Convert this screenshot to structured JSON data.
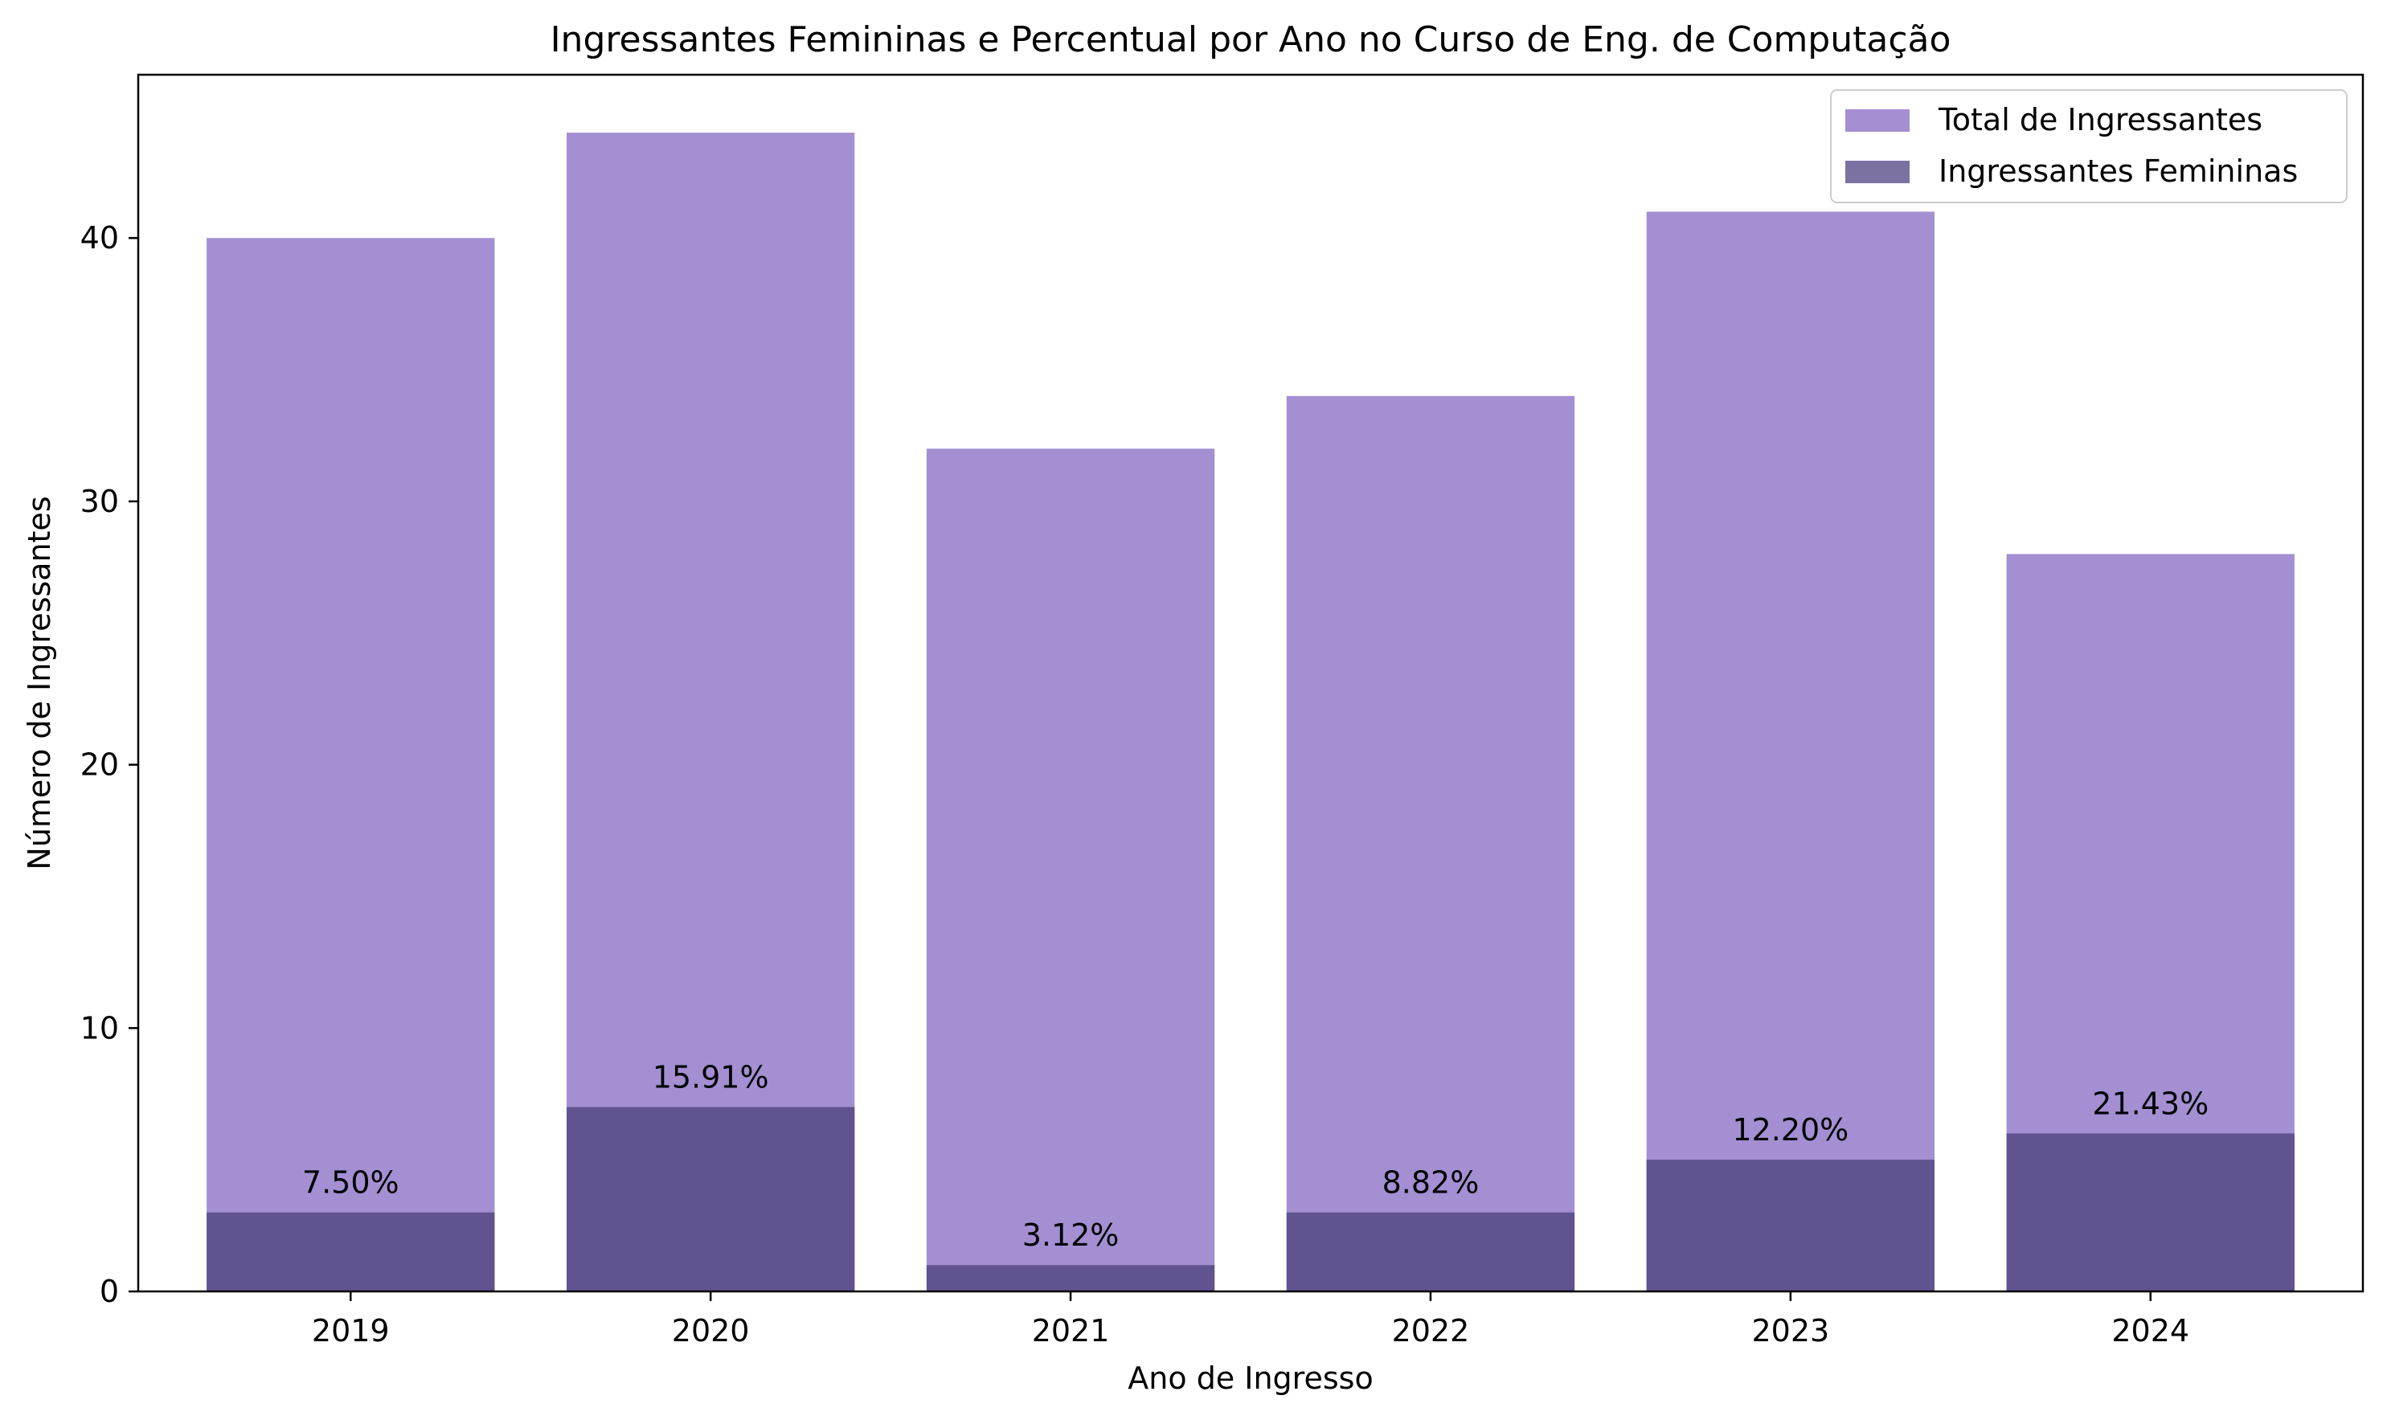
{
  "chart_data": {
    "type": "bar",
    "title": "Ingressantes Femininas e Percentual por Ano no Curso de Eng. de Computação",
    "xlabel": "Ano de Ingresso",
    "ylabel": "Número de Ingressantes",
    "categories": [
      "2019",
      "2020",
      "2021",
      "2022",
      "2023",
      "2024"
    ],
    "ylim": [
      0,
      46.2
    ],
    "yticks": [
      0,
      10,
      20,
      30,
      40
    ],
    "grid": false,
    "legend_position": "top-right",
    "series": [
      {
        "name": "Total de Ingressantes",
        "values": [
          40,
          44,
          32,
          34,
          41,
          28
        ],
        "color": "#a38fd2"
      },
      {
        "name": "Ingressantes Femininas",
        "values": [
          3,
          7,
          1,
          3,
          5,
          6
        ],
        "color": "#605390"
      }
    ],
    "annotations": [
      "7.50%",
      "15.91%",
      "3.12%",
      "8.82%",
      "12.20%",
      "21.43%"
    ],
    "legend_swatch_colors": [
      "#a38fd2",
      "#7c72a2"
    ]
  }
}
